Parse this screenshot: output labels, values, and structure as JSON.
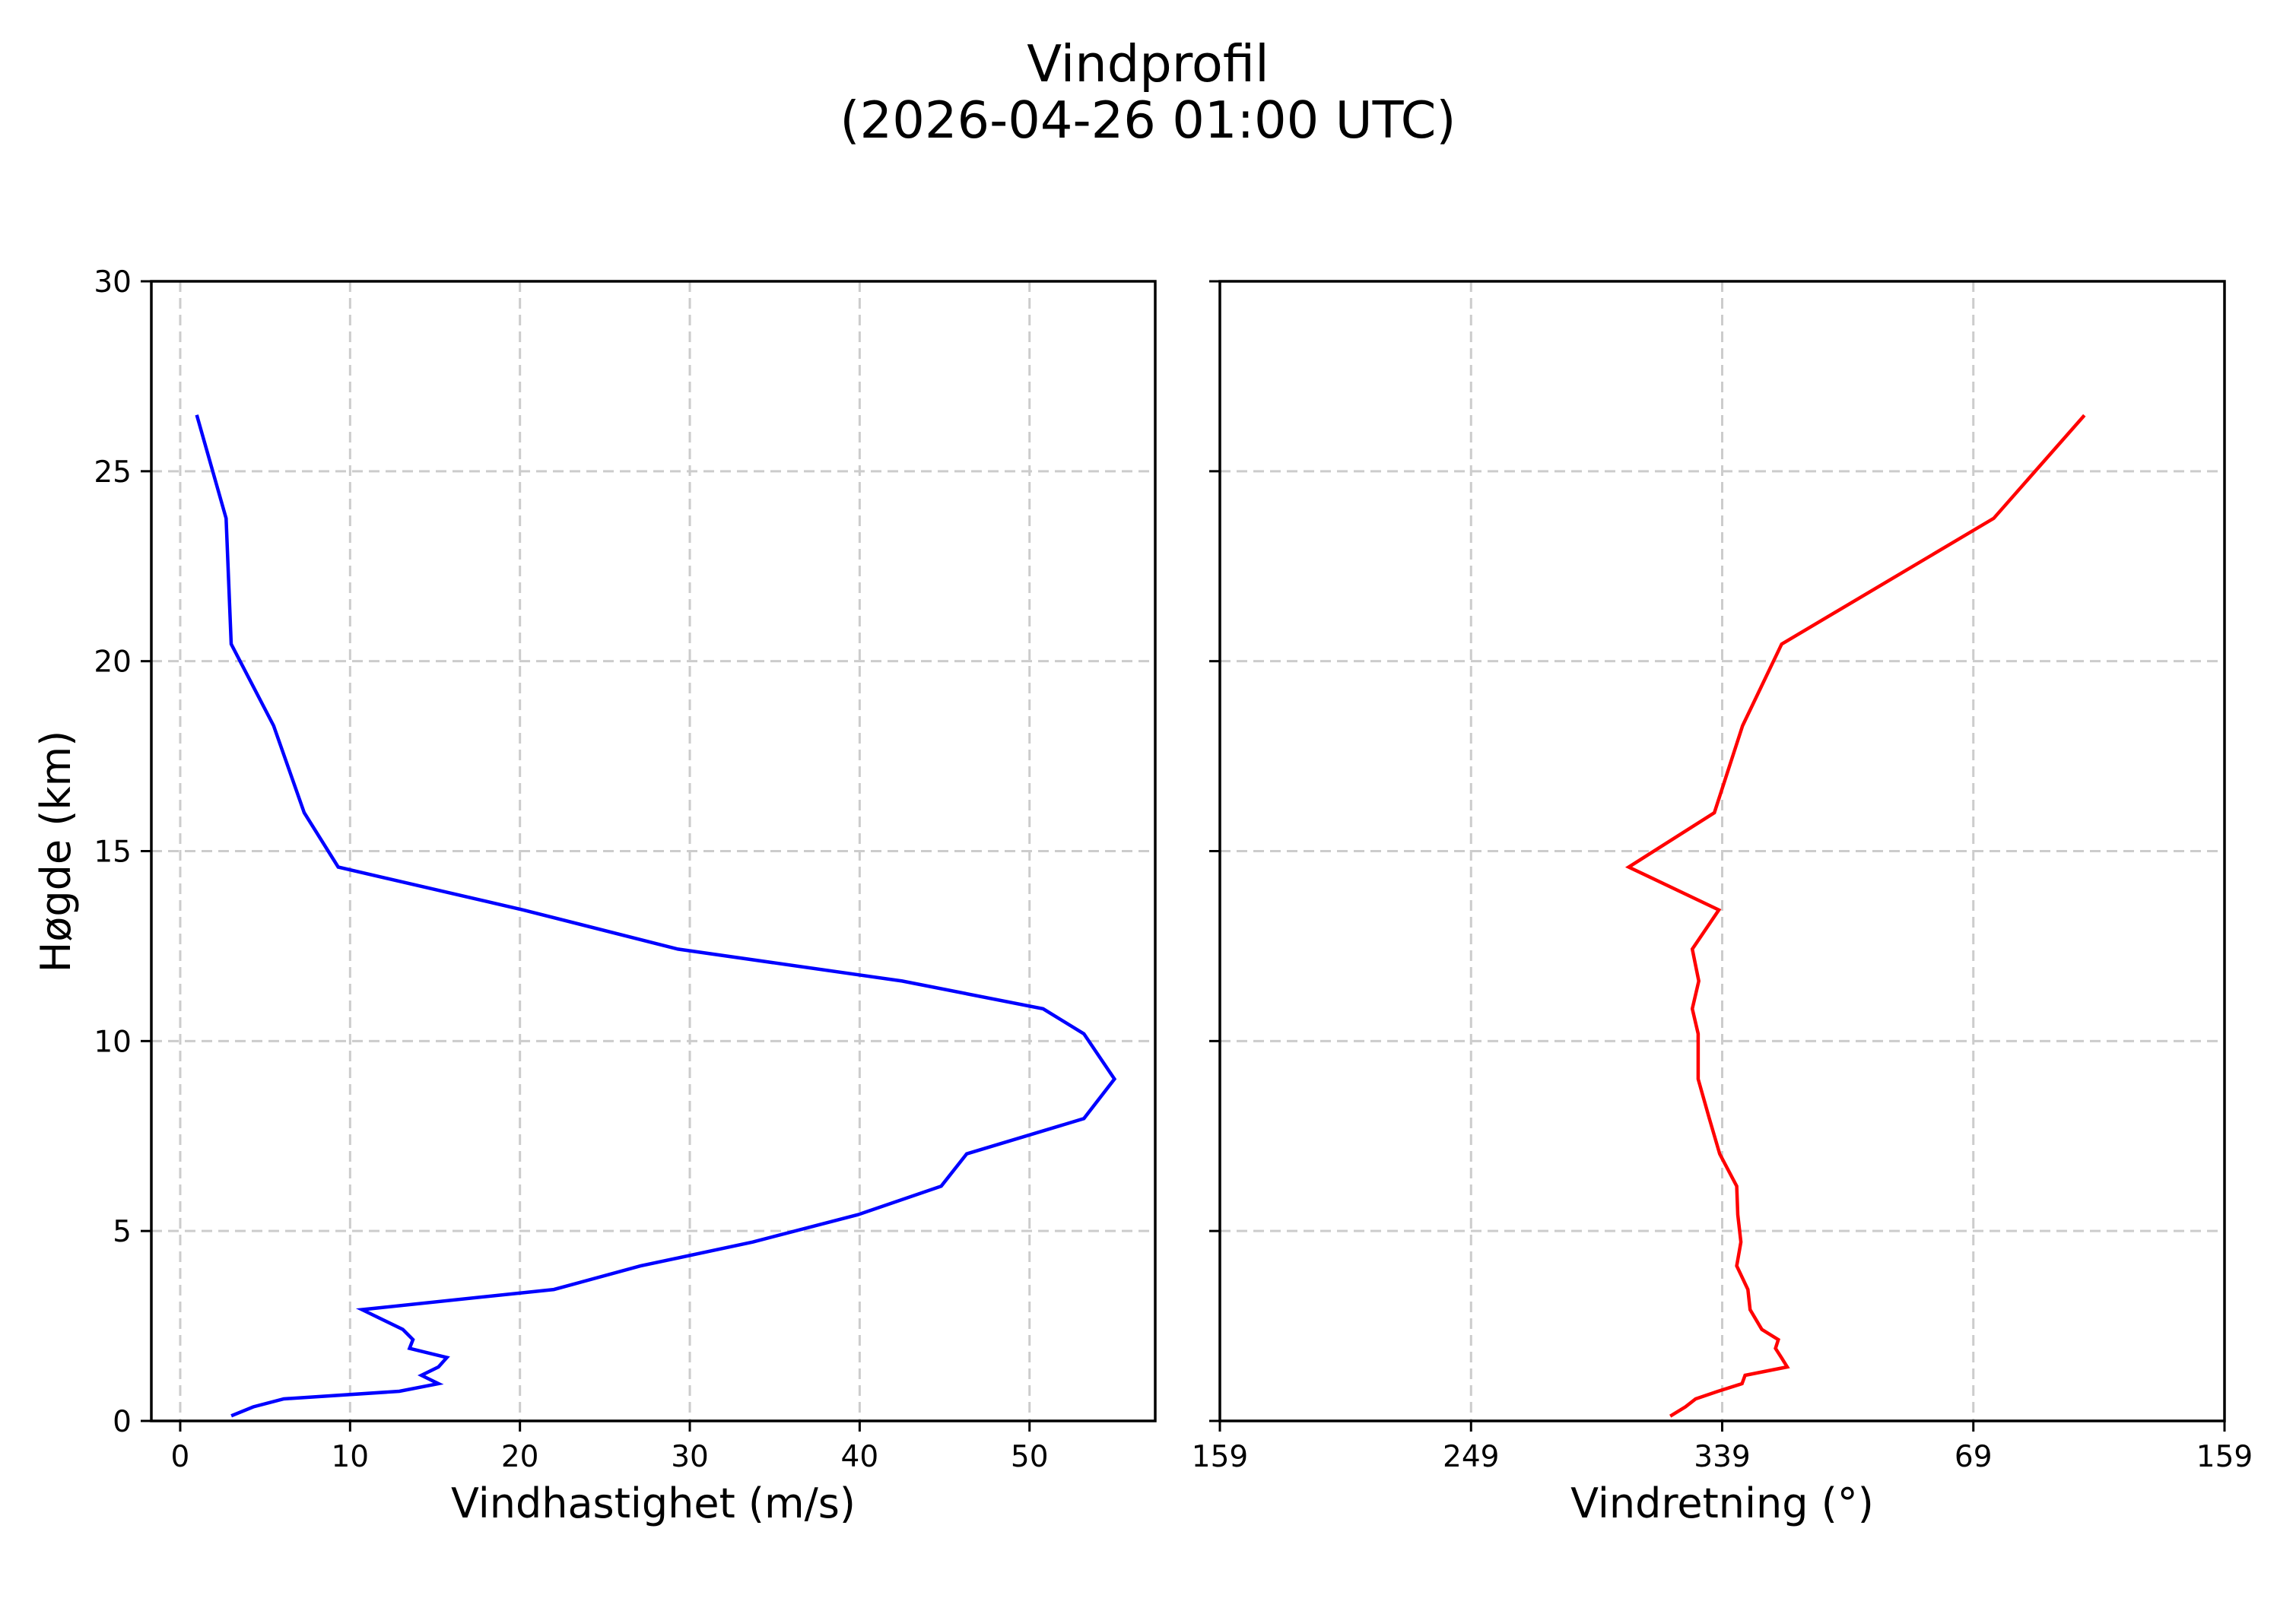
{
  "figure": {
    "title_line1": "Vindprofil",
    "title_line2": "(2026-04-26 01:00 UTC)"
  },
  "colors": {
    "speed_line": "#0000ff",
    "direction_line": "#ff0000",
    "grid": "#cccccc",
    "axes": "#000000"
  },
  "chart_data": [
    {
      "type": "line",
      "panel": "left",
      "title": "Vindprofil (2026-04-26 01:00 UTC)",
      "xlabel": "Vindhastighet (m/s)",
      "ylabel": "Høgde (km)",
      "xlim": [
        -1.7,
        57.4
      ],
      "ylim": [
        0,
        30
      ],
      "xticks": [
        0,
        10,
        20,
        30,
        40,
        50
      ],
      "xtick_labels": [
        "0",
        "10",
        "20",
        "30",
        "40",
        "50"
      ],
      "yticks": [
        0,
        5,
        10,
        15,
        20,
        25,
        30
      ],
      "ytick_labels": [
        "0",
        "5",
        "10",
        "15",
        "20",
        "25",
        "30"
      ],
      "grid": true,
      "grid_style": "dashed",
      "series": [
        {
          "name": "Vindhastighet",
          "color": "#0000ff",
          "height_km": [
            0.15,
            0.37,
            0.58,
            0.78,
            0.98,
            1.2,
            1.42,
            1.67,
            1.91,
            2.14,
            2.41,
            2.93,
            3.46,
            4.08,
            4.71,
            5.43,
            6.18,
            7.03,
            7.96,
            9.0,
            10.19,
            10.85,
            11.58,
            12.42,
            13.45,
            14.58,
            16.01,
            18.3,
            20.45,
            23.76,
            26.44
          ],
          "values": [
            3.1,
            4.3,
            6.1,
            12.9,
            15.2,
            14.2,
            15.2,
            15.7,
            13.5,
            13.7,
            13.1,
            10.7,
            22.0,
            27.1,
            33.7,
            39.9,
            44.8,
            46.3,
            53.2,
            55.0,
            53.2,
            50.8,
            42.5,
            29.3,
            20.2,
            9.3,
            7.3,
            5.5,
            3.0,
            2.7,
            1.0
          ]
        }
      ]
    },
    {
      "type": "line",
      "panel": "right",
      "xlabel": "Vindretning (°)",
      "ylabel": "",
      "xlim": [
        159,
        519
      ],
      "ylim": [
        0,
        30
      ],
      "xticks": [
        159,
        249,
        339,
        429,
        519
      ],
      "xtick_labels": [
        "159",
        "249",
        "339",
        "69",
        "159"
      ],
      "yticks": [
        0,
        5,
        10,
        15,
        20,
        25,
        30
      ],
      "ytick_labels": [],
      "shared_y": true,
      "grid": true,
      "grid_style": "dashed",
      "series": [
        {
          "name": "Vindretning",
          "color": "#ff0000",
          "height_km": [
            0.15,
            0.37,
            0.58,
            0.78,
            0.98,
            1.2,
            1.42,
            1.67,
            1.91,
            2.14,
            2.41,
            2.93,
            3.46,
            4.08,
            4.71,
            5.43,
            6.18,
            7.03,
            7.96,
            9.0,
            10.19,
            10.85,
            11.58,
            12.42,
            13.45,
            14.58,
            16.01,
            18.3,
            20.45,
            23.76,
            26.44
          ],
          "values": [
            320.9,
            325.8,
            329.5,
            337.5,
            346.1,
            347.2,
            2.3,
            0.2,
            358.1,
            359.1,
            353.2,
            349.0,
            348.2,
            344.2,
            345.7,
            344.6,
            344.2,
            338.1,
            334.4,
            330.4,
            330.4,
            328.3,
            330.6,
            328.3,
            337.8,
            305.5,
            336.2,
            346.3,
            0.3,
            76.3,
            108.4
          ]
        }
      ]
    }
  ]
}
